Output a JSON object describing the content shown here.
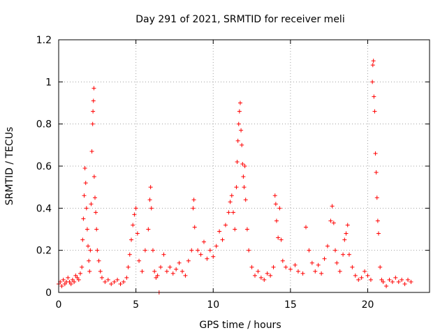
{
  "chart_data": {
    "type": "scatter",
    "title": "Day 291 of 2021, SRMTID for receiver meli",
    "xlabel": "GPS time / hours",
    "ylabel": "SRMTID / TECUs",
    "xlim": [
      0,
      24
    ],
    "ylim": [
      0,
      1.2
    ],
    "x_ticks": [
      0,
      5,
      10,
      15,
      20
    ],
    "x_tick_labels": [
      "0",
      "5",
      "10",
      "15",
      "20"
    ],
    "y_ticks": [
      0,
      0.2,
      0.4,
      0.6,
      0.8,
      1.0,
      1.2
    ],
    "y_tick_labels": [
      "0",
      "0.2",
      "0.4",
      "0.6",
      "0.8",
      "1",
      "1.2"
    ],
    "grid": true,
    "marker": "plus",
    "color": "#ff0000",
    "series": [
      {
        "name": "SRMTID",
        "points": [
          [
            0.0,
            0.04
          ],
          [
            0.1,
            0.05
          ],
          [
            0.2,
            0.03
          ],
          [
            0.3,
            0.06
          ],
          [
            0.4,
            0.04
          ],
          [
            0.5,
            0.05
          ],
          [
            0.6,
            0.07
          ],
          [
            0.7,
            0.05
          ],
          [
            0.8,
            0.04
          ],
          [
            0.9,
            0.06
          ],
          [
            1.0,
            0.05
          ],
          [
            1.1,
            0.08
          ],
          [
            1.2,
            0.07
          ],
          [
            1.3,
            0.06
          ],
          [
            1.4,
            0.09
          ],
          [
            1.5,
            0.12
          ],
          [
            1.55,
            0.25
          ],
          [
            1.6,
            0.35
          ],
          [
            1.65,
            0.46
          ],
          [
            1.7,
            0.59
          ],
          [
            1.75,
            0.52
          ],
          [
            1.8,
            0.4
          ],
          [
            1.85,
            0.3
          ],
          [
            1.9,
            0.22
          ],
          [
            1.95,
            0.15
          ],
          [
            2.0,
            0.1
          ],
          [
            2.05,
            0.2
          ],
          [
            2.1,
            0.42
          ],
          [
            2.15,
            0.67
          ],
          [
            2.2,
            0.8
          ],
          [
            2.22,
            0.86
          ],
          [
            2.25,
            0.91
          ],
          [
            2.28,
            0.97
          ],
          [
            2.3,
            0.55
          ],
          [
            2.35,
            0.45
          ],
          [
            2.4,
            0.38
          ],
          [
            2.45,
            0.3
          ],
          [
            2.5,
            0.2
          ],
          [
            2.6,
            0.15
          ],
          [
            2.7,
            0.1
          ],
          [
            2.8,
            0.07
          ],
          [
            3.0,
            0.05
          ],
          [
            3.2,
            0.06
          ],
          [
            3.4,
            0.04
          ],
          [
            3.6,
            0.05
          ],
          [
            3.8,
            0.06
          ],
          [
            4.0,
            0.04
          ],
          [
            4.2,
            0.05
          ],
          [
            4.4,
            0.07
          ],
          [
            4.5,
            0.12
          ],
          [
            4.6,
            0.18
          ],
          [
            4.7,
            0.25
          ],
          [
            4.8,
            0.32
          ],
          [
            4.9,
            0.37
          ],
          [
            5.0,
            0.4
          ],
          [
            5.1,
            0.28
          ],
          [
            5.2,
            0.15
          ],
          [
            5.4,
            0.1
          ],
          [
            5.6,
            0.2
          ],
          [
            5.8,
            0.3
          ],
          [
            5.9,
            0.44
          ],
          [
            5.95,
            0.5
          ],
          [
            6.0,
            0.4
          ],
          [
            6.1,
            0.2
          ],
          [
            6.2,
            0.1
          ],
          [
            6.3,
            0.07
          ],
          [
            6.4,
            0.08
          ],
          [
            6.5,
            0.0
          ],
          [
            6.6,
            0.12
          ],
          [
            6.8,
            0.18
          ],
          [
            7.0,
            0.1
          ],
          [
            7.2,
            0.12
          ],
          [
            7.4,
            0.09
          ],
          [
            7.6,
            0.11
          ],
          [
            7.8,
            0.14
          ],
          [
            8.0,
            0.1
          ],
          [
            8.2,
            0.08
          ],
          [
            8.4,
            0.15
          ],
          [
            8.6,
            0.2
          ],
          [
            8.7,
            0.4
          ],
          [
            8.75,
            0.44
          ],
          [
            8.8,
            0.31
          ],
          [
            9.0,
            0.2
          ],
          [
            9.2,
            0.18
          ],
          [
            9.4,
            0.24
          ],
          [
            9.6,
            0.16
          ],
          [
            9.8,
            0.2
          ],
          [
            10.0,
            0.17
          ],
          [
            10.2,
            0.22
          ],
          [
            10.4,
            0.29
          ],
          [
            10.6,
            0.25
          ],
          [
            10.8,
            0.32
          ],
          [
            11.0,
            0.38
          ],
          [
            11.1,
            0.43
          ],
          [
            11.2,
            0.46
          ],
          [
            11.3,
            0.38
          ],
          [
            11.4,
            0.3
          ],
          [
            11.5,
            0.5
          ],
          [
            11.55,
            0.62
          ],
          [
            11.6,
            0.72
          ],
          [
            11.65,
            0.8
          ],
          [
            11.7,
            0.86
          ],
          [
            11.75,
            0.9
          ],
          [
            11.8,
            0.77
          ],
          [
            11.85,
            0.7
          ],
          [
            11.9,
            0.61
          ],
          [
            11.95,
            0.55
          ],
          [
            12.0,
            0.5
          ],
          [
            12.05,
            0.6
          ],
          [
            12.1,
            0.44
          ],
          [
            12.2,
            0.3
          ],
          [
            12.3,
            0.2
          ],
          [
            12.5,
            0.12
          ],
          [
            12.7,
            0.08
          ],
          [
            12.9,
            0.1
          ],
          [
            13.1,
            0.07
          ],
          [
            13.3,
            0.06
          ],
          [
            13.5,
            0.09
          ],
          [
            13.7,
            0.08
          ],
          [
            13.9,
            0.12
          ],
          [
            14.0,
            0.46
          ],
          [
            14.05,
            0.42
          ],
          [
            14.1,
            0.34
          ],
          [
            14.2,
            0.26
          ],
          [
            14.3,
            0.4
          ],
          [
            14.4,
            0.25
          ],
          [
            14.5,
            0.15
          ],
          [
            14.7,
            0.12
          ],
          [
            15.0,
            0.11
          ],
          [
            15.3,
            0.13
          ],
          [
            15.5,
            0.1
          ],
          [
            15.8,
            0.09
          ],
          [
            16.0,
            0.31
          ],
          [
            16.2,
            0.2
          ],
          [
            16.4,
            0.14
          ],
          [
            16.6,
            0.1
          ],
          [
            16.8,
            0.13
          ],
          [
            17.0,
            0.09
          ],
          [
            17.2,
            0.16
          ],
          [
            17.4,
            0.22
          ],
          [
            17.6,
            0.34
          ],
          [
            17.7,
            0.41
          ],
          [
            17.8,
            0.33
          ],
          [
            17.9,
            0.2
          ],
          [
            18.0,
            0.14
          ],
          [
            18.2,
            0.1
          ],
          [
            18.4,
            0.18
          ],
          [
            18.5,
            0.25
          ],
          [
            18.6,
            0.28
          ],
          [
            18.7,
            0.32
          ],
          [
            18.8,
            0.18
          ],
          [
            19.0,
            0.12
          ],
          [
            19.2,
            0.08
          ],
          [
            19.4,
            0.06
          ],
          [
            19.6,
            0.07
          ],
          [
            19.8,
            0.1
          ],
          [
            20.0,
            0.08
          ],
          [
            20.2,
            0.06
          ],
          [
            20.3,
            1.0
          ],
          [
            20.33,
            1.08
          ],
          [
            20.37,
            1.1
          ],
          [
            20.4,
            0.93
          ],
          [
            20.45,
            0.86
          ],
          [
            20.5,
            0.66
          ],
          [
            20.55,
            0.57
          ],
          [
            20.6,
            0.45
          ],
          [
            20.65,
            0.34
          ],
          [
            20.7,
            0.28
          ],
          [
            20.8,
            0.12
          ],
          [
            20.9,
            0.06
          ],
          [
            21.0,
            0.05
          ],
          [
            21.2,
            0.03
          ],
          [
            21.4,
            0.06
          ],
          [
            21.6,
            0.05
          ],
          [
            21.8,
            0.07
          ],
          [
            22.0,
            0.05
          ],
          [
            22.2,
            0.06
          ],
          [
            22.4,
            0.04
          ],
          [
            22.6,
            0.06
          ],
          [
            22.8,
            0.05
          ]
        ]
      }
    ]
  }
}
